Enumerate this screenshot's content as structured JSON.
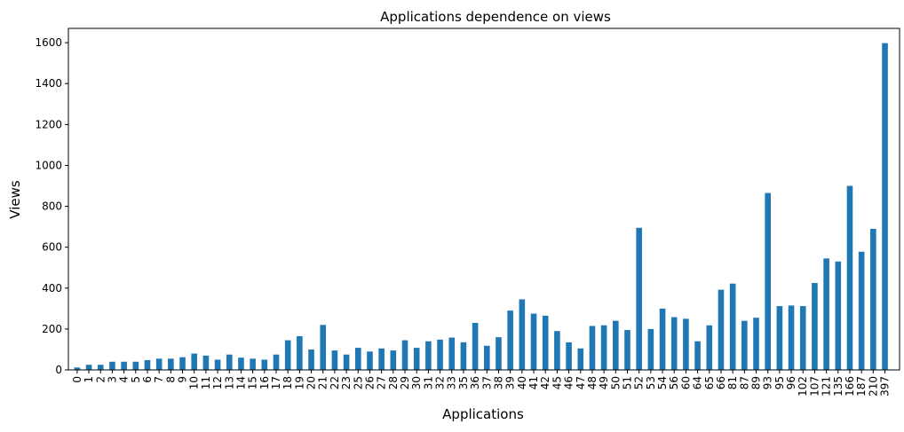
{
  "chart_data": {
    "type": "bar",
    "title": "Applications dependence on views",
    "xlabel": "Applications",
    "ylabel": "Views",
    "ylim": [
      0,
      1670
    ],
    "yticks": [
      0,
      200,
      400,
      600,
      800,
      1000,
      1200,
      1400,
      1600
    ],
    "grid": false,
    "legend": "none",
    "bar_color": "#1f77b4",
    "categories": [
      "0",
      "1",
      "2",
      "3",
      "4",
      "5",
      "6",
      "7",
      "8",
      "9",
      "10",
      "11",
      "12",
      "13",
      "14",
      "15",
      "16",
      "17",
      "18",
      "19",
      "20",
      "21",
      "22",
      "23",
      "25",
      "26",
      "27",
      "28",
      "29",
      "30",
      "31",
      "32",
      "33",
      "35",
      "36",
      "37",
      "38",
      "39",
      "40",
      "41",
      "42",
      "45",
      "46",
      "47",
      "48",
      "49",
      "50",
      "51",
      "52",
      "53",
      "54",
      "56",
      "60",
      "64",
      "65",
      "66",
      "81",
      "87",
      "89",
      "93",
      "95",
      "96",
      "102",
      "107",
      "121",
      "135",
      "166",
      "187",
      "210",
      "397"
    ],
    "values": [
      12,
      25,
      25,
      40,
      40,
      40,
      48,
      55,
      55,
      62,
      80,
      70,
      50,
      75,
      60,
      55,
      50,
      75,
      145,
      165,
      100,
      220,
      95,
      75,
      108,
      90,
      105,
      95,
      145,
      108,
      140,
      148,
      158,
      135,
      230,
      118,
      160,
      290,
      345,
      275,
      265,
      190,
      135,
      105,
      215,
      218,
      240,
      195,
      695,
      200,
      300,
      258,
      250,
      140,
      218,
      392,
      422,
      240,
      255,
      865,
      312,
      315,
      312,
      425,
      545,
      530,
      900,
      578,
      690,
      1598
    ]
  }
}
